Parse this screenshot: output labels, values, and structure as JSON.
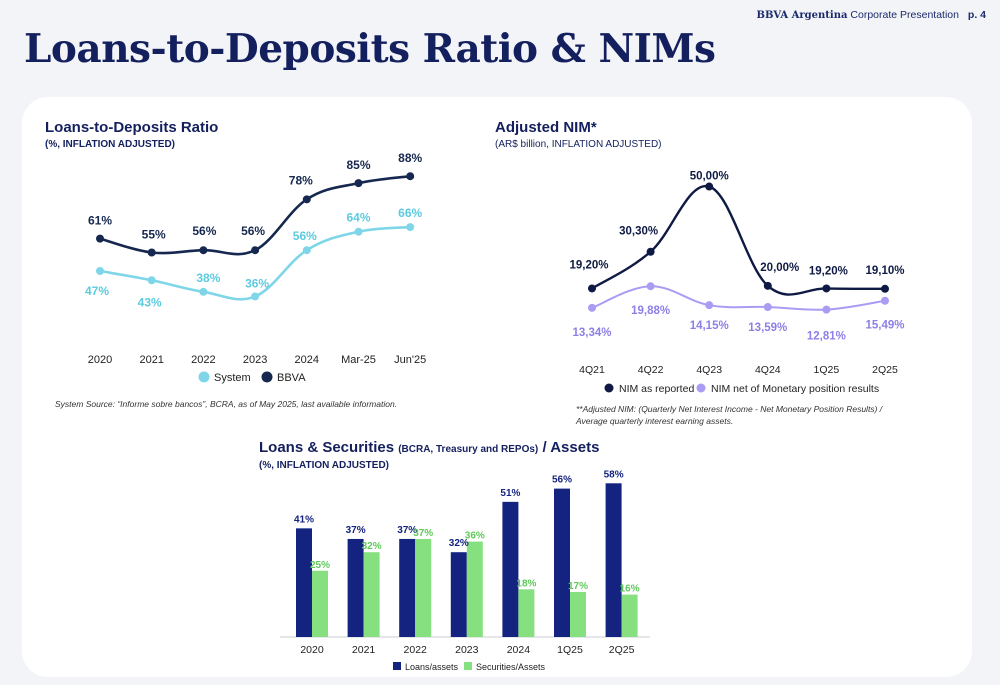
{
  "header": {
    "brand": "BBVA Argentina",
    "section": "Corporate Presentation",
    "page": "p. 4"
  },
  "page_title": "Loans-to-Deposits Ratio & NIMs",
  "ltd_chart": {
    "title": "Loans-to-Deposits Ratio",
    "subtitle": "(%, INFLATION ADJUSTED)",
    "source": "System Source: “Informe sobre bancos”, BCRA, as of  May 2025, last available information."
  },
  "nim_chart": {
    "title": "Adjusted NIM*",
    "subtitle": "(AR$ billion, INFLATION ADJUSTED)",
    "footnote": "**Adjusted NIM:  (Quarterly Net Interest Income - Net Monetary Position Results) / Average quarterly interest earning assets."
  },
  "ls_chart": {
    "title_main": "Loans & Securities",
    "title_paren": "(BCRA, Treasury and REPOs)",
    "title_tail": "/ Assets",
    "subtitle": "(%, INFLATION ADJUSTED)"
  },
  "colors": {
    "navy": "#14205e",
    "bbva_line": "#16284f",
    "system_line": "#7fd6e8",
    "system_label": "#5ccbe0",
    "nim_reported": "#0f1a44",
    "nim_net": "#a99cf2",
    "nim_net_label": "#8c7fe6",
    "bar_loans": "#14237f",
    "bar_securities": "#86e07f",
    "bar_sec_label": "#5fc95a"
  },
  "chart_data": [
    {
      "type": "line",
      "title": "Loans-to-Deposits Ratio",
      "subtitle": "(%, INFLATION ADJUSTED)",
      "categories": [
        "2020",
        "2021",
        "2022",
        "2023",
        "2024",
        "Mar-25",
        "Jun'25"
      ],
      "series": [
        {
          "name": "System",
          "values": [
            47,
            43,
            38,
            36,
            56,
            64,
            66
          ],
          "labels": [
            "47%",
            "43%",
            "38%",
            "36%",
            "56%",
            "64%",
            "66%"
          ]
        },
        {
          "name": "BBVA",
          "values": [
            61,
            55,
            56,
            56,
            78,
            85,
            88
          ],
          "labels": [
            "61%",
            "55%",
            "56%",
            "56%",
            "78%",
            "85%",
            "88%"
          ]
        }
      ],
      "ylim": [
        15,
        95
      ],
      "legend": "bottom",
      "grid": false
    },
    {
      "type": "line",
      "title": "Adjusted NIM*",
      "subtitle": "(AR$ billion, INFLATION ADJUSTED)",
      "categories": [
        "4Q21",
        "4Q22",
        "4Q23",
        "4Q24",
        "1Q25",
        "2Q25"
      ],
      "series": [
        {
          "name": "NIM as reported",
          "values": [
            19.2,
            30.3,
            50.0,
            20.0,
            19.2,
            19.1
          ],
          "labels": [
            "19,20%",
            "30,30%",
            "50,00%",
            "20,00%",
            "19,20%",
            "19,10%"
          ]
        },
        {
          "name": "NIM net of Monetary position results",
          "values": [
            13.34,
            19.88,
            14.15,
            13.59,
            12.81,
            15.49
          ],
          "labels": [
            "13,34%",
            "19,88%",
            "14,15%",
            "13,59%",
            "12,81%",
            "15,49%"
          ]
        }
      ],
      "ylim": [
        0,
        55
      ],
      "legend": "bottom",
      "grid": false
    },
    {
      "type": "bar",
      "title": "Loans & Securities (BCRA, Treasury and REPOs) / Assets",
      "subtitle": "(%, INFLATION ADJUSTED)",
      "categories": [
        "2020",
        "2021",
        "2022",
        "2023",
        "2024",
        "1Q25",
        "2Q25"
      ],
      "series": [
        {
          "name": "Loans/assets",
          "values": [
            41,
            37,
            37,
            32,
            51,
            56,
            58
          ],
          "labels": [
            "41%",
            "37%",
            "37%",
            "32%",
            "51%",
            "56%",
            "58%"
          ]
        },
        {
          "name": "Securities/Assets",
          "values": [
            25,
            32,
            37,
            36,
            18,
            17,
            16
          ],
          "labels": [
            "25%",
            "32%",
            "37%",
            "36%",
            "18%",
            "17%",
            "16%"
          ]
        }
      ],
      "ylim": [
        0,
        60
      ],
      "legend": "bottom",
      "grid": false
    }
  ]
}
